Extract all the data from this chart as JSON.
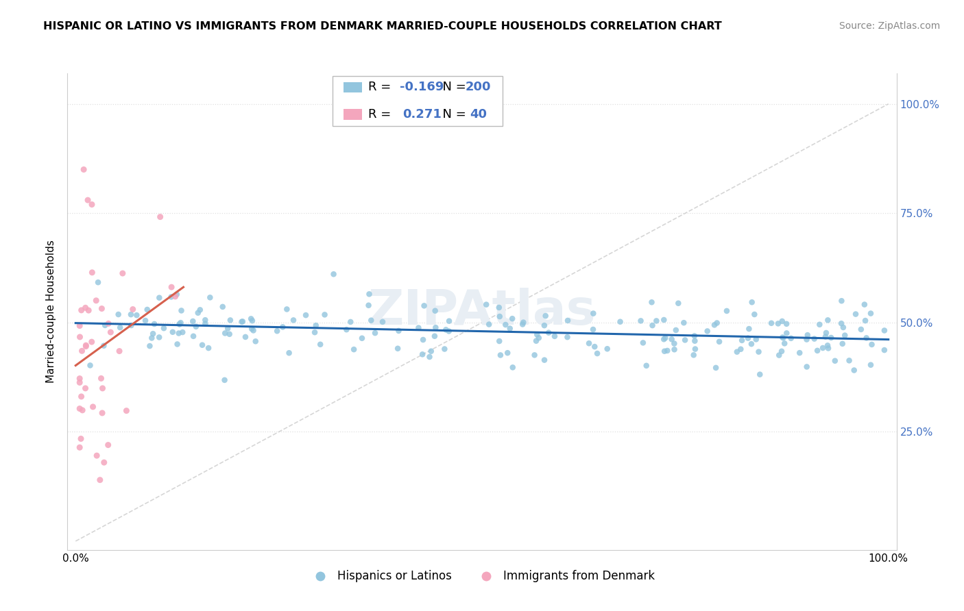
{
  "title": "HISPANIC OR LATINO VS IMMIGRANTS FROM DENMARK MARRIED-COUPLE HOUSEHOLDS CORRELATION CHART",
  "source": "Source: ZipAtlas.com",
  "ylabel": "Married-couple Households",
  "legend_blue_r": "-0.169",
  "legend_blue_n": "200",
  "legend_pink_r": "0.271",
  "legend_pink_n": "40",
  "blue_color": "#92c5de",
  "pink_color": "#f4a6bd",
  "trend_blue_color": "#2166ac",
  "trend_pink_color": "#d6604d",
  "diagonal_color": "#cccccc",
  "grid_color": "#e0e0e0",
  "watermark_color": "#e8eef4",
  "tick_label_color": "#4472c4",
  "title_fontsize": 11.5,
  "source_fontsize": 10,
  "axis_label_fontsize": 11,
  "tick_fontsize": 11,
  "legend_fontsize": 13
}
